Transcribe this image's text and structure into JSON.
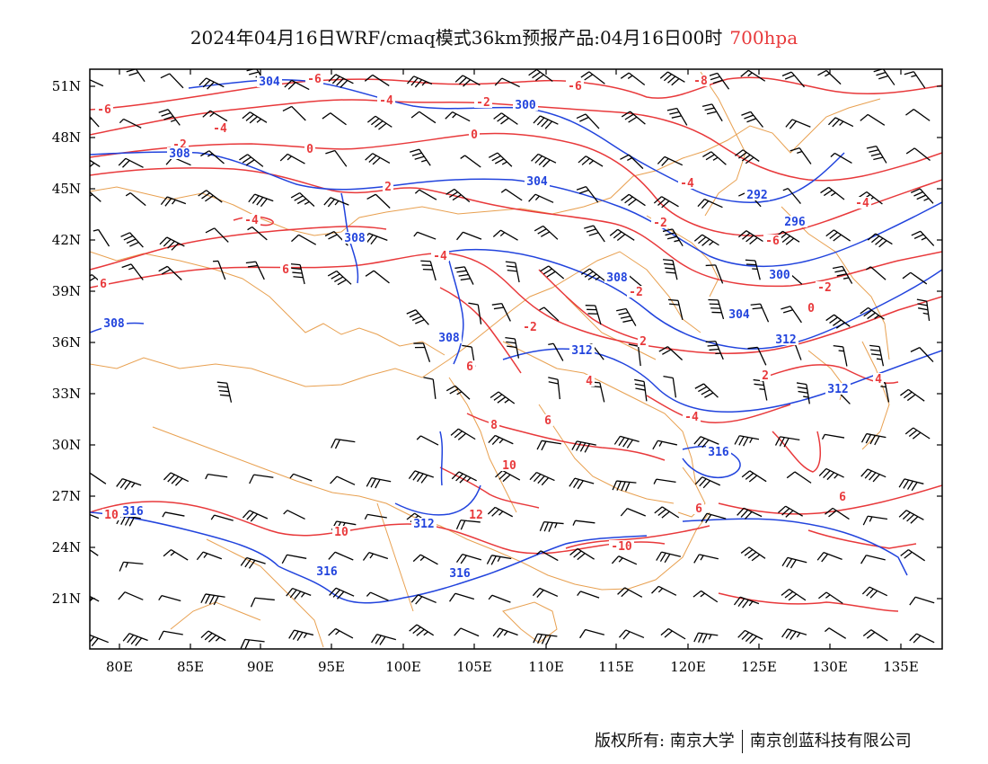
{
  "title": {
    "text": "2024年04月16日WRF/cmaq模式36km预报产品:04月16日00时",
    "level": "700hpa"
  },
  "axes": {
    "lon_ticks": [
      "80E",
      "85E",
      "90E",
      "95E",
      "100E",
      "105E",
      "110E",
      "115E",
      "120E",
      "125E",
      "130E",
      "135E"
    ],
    "lat_ticks": [
      "51N",
      "48N",
      "45N",
      "42N",
      "39N",
      "36N",
      "33N",
      "30N",
      "27N",
      "24N",
      "21N"
    ]
  },
  "colors": {
    "temperature": "#e8393b",
    "geopotential": "#2244dd",
    "border": "#e8a050",
    "wind": "#000000"
  },
  "temperature_labels": [
    "-6",
    "-6",
    "-4",
    "-4",
    "-2",
    "-2",
    "0",
    "0",
    "-4",
    "-6",
    "2",
    "-2",
    "-4",
    "-4",
    "6",
    "6",
    "-8",
    "-6",
    "-4",
    "-2",
    "0",
    "-2",
    "-2",
    "2",
    "2",
    "4",
    "-4",
    "6",
    "6",
    "8",
    "10",
    "12",
    "10",
    "-10",
    "10",
    "6",
    "6",
    "4"
  ],
  "geopotential_labels": [
    "304",
    "300",
    "308",
    "304",
    "308",
    "292",
    "296",
    "300",
    "308",
    "304",
    "308",
    "308",
    "312",
    "312",
    "312",
    "316",
    "312",
    "316",
    "316",
    "316"
  ],
  "copyright": {
    "left": "版权所有: 南京大学",
    "right": "南京创蓝科技有限公司"
  }
}
